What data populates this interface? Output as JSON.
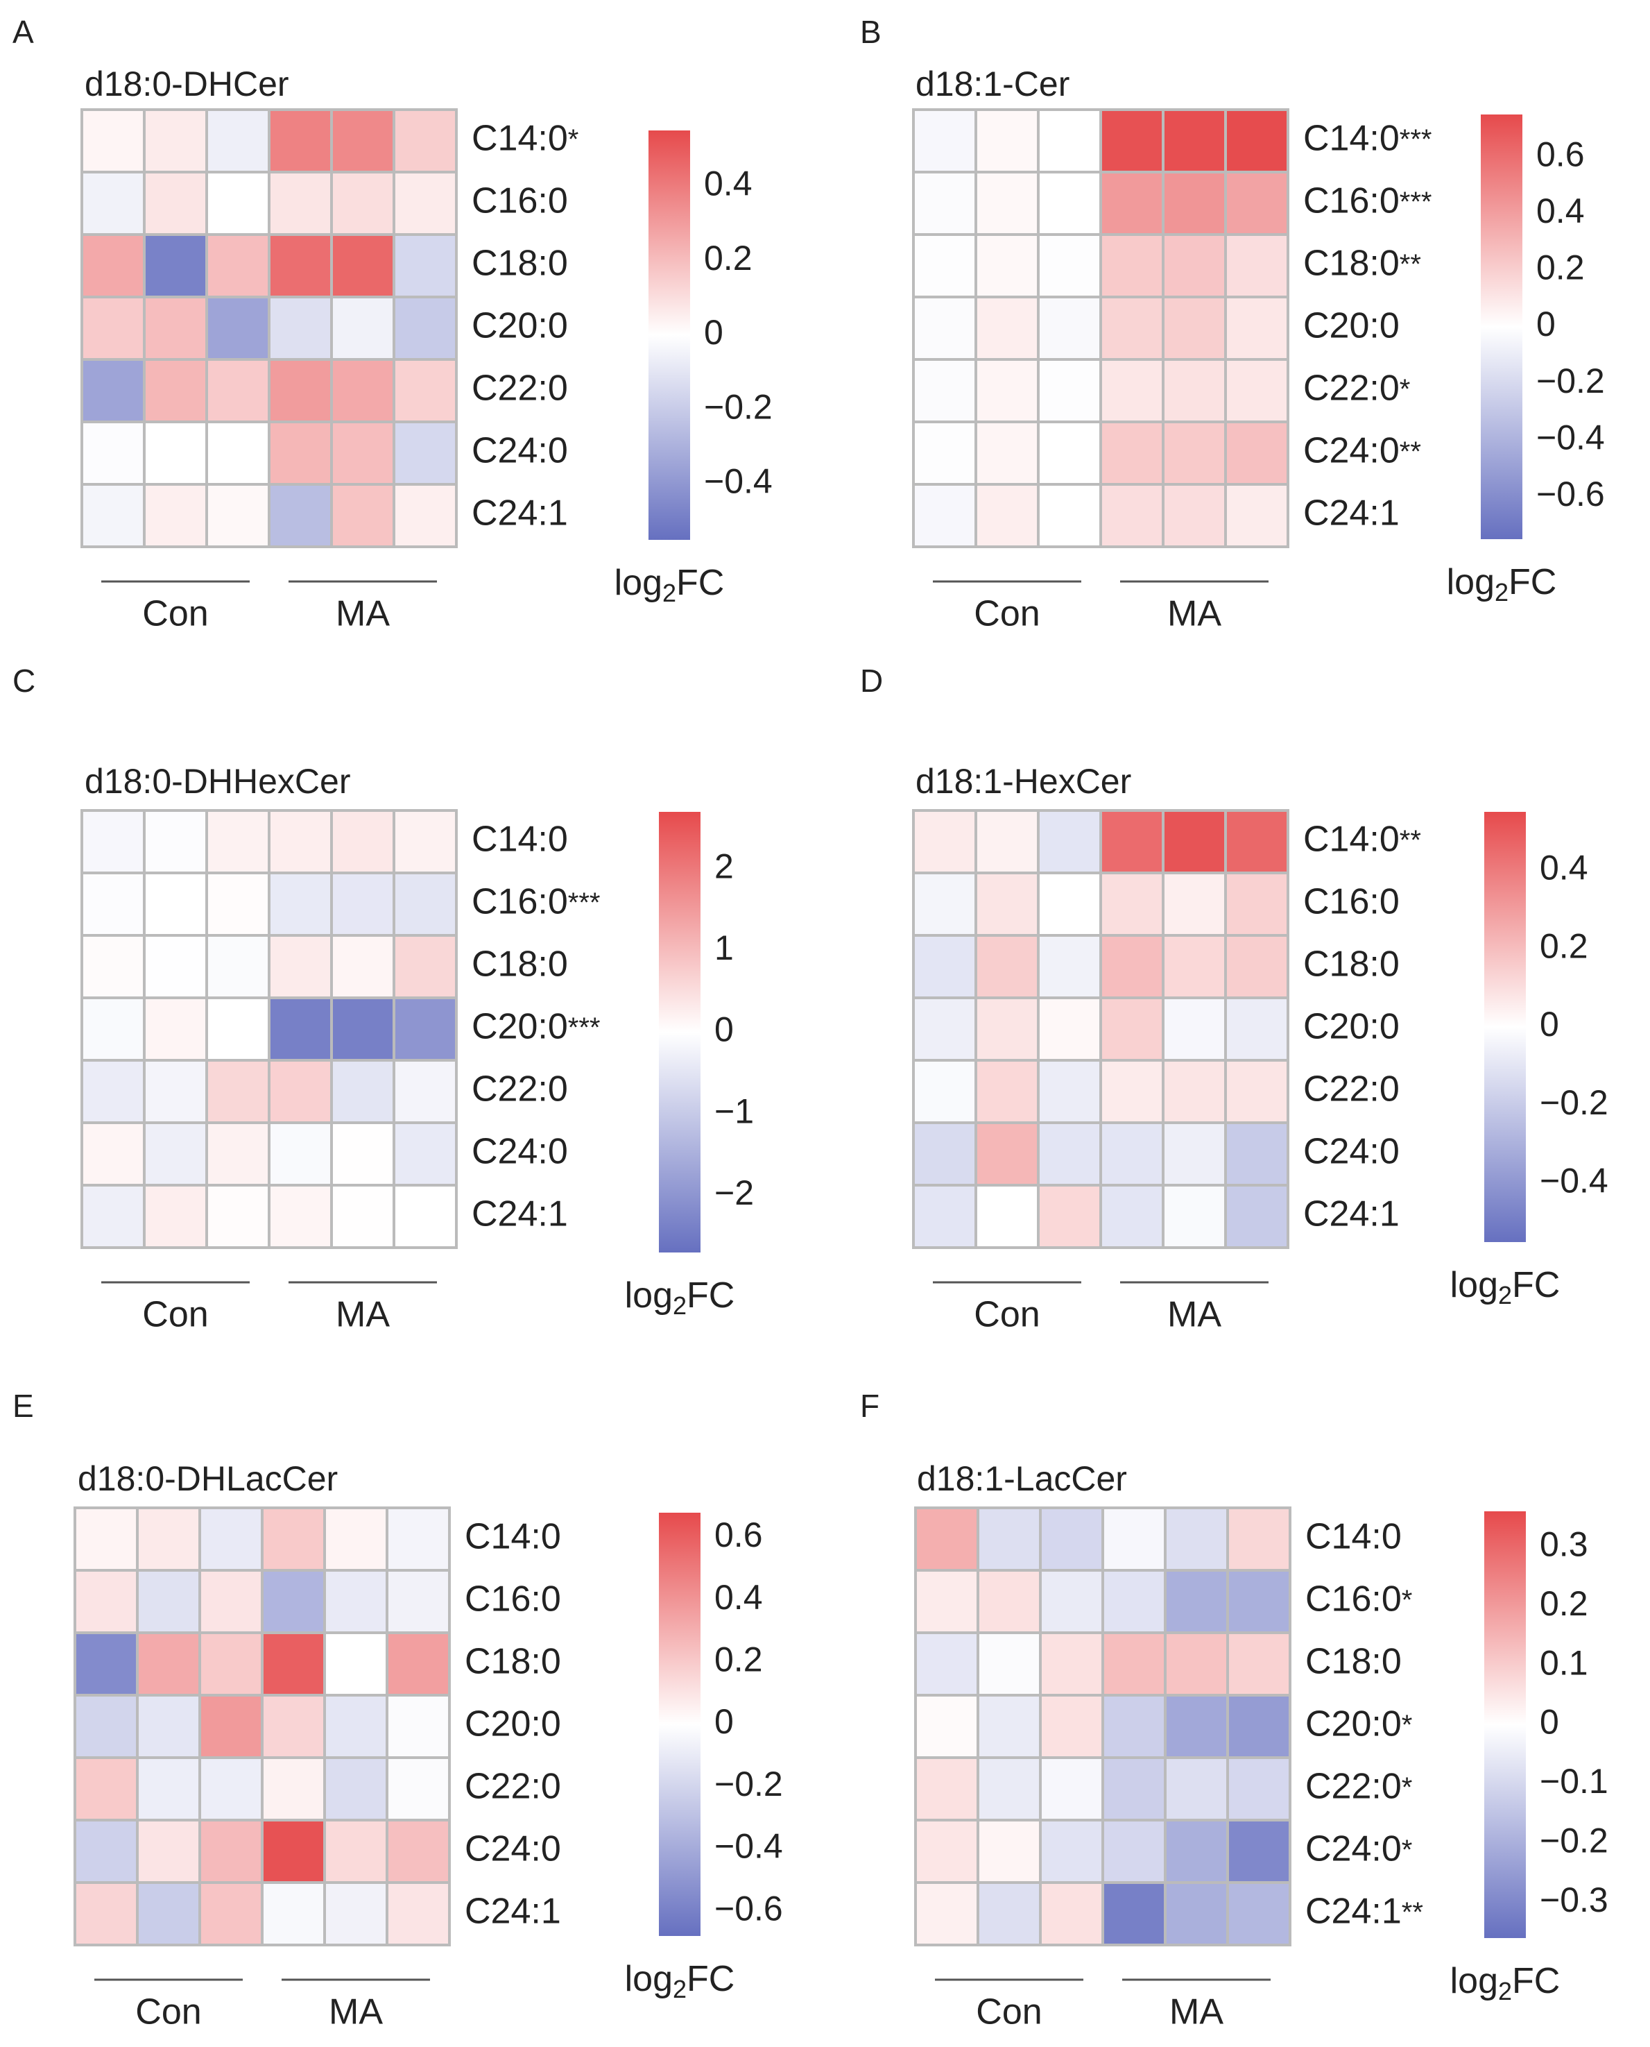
{
  "legend_label": {
    "base": "log",
    "sub": "2",
    "tail": "FC"
  },
  "group_labels": [
    "Con",
    "MA"
  ],
  "colors": {
    "low": "#6670c0",
    "mid": "#ffffff",
    "high": "#e64a4c",
    "grid": "#bbbbbb",
    "text": "#222222"
  },
  "chart_data": [
    {
      "panel": "A",
      "type": "heatmap",
      "title": "d18:0-DHCer",
      "rows": [
        "C14:0",
        "C16:0",
        "C18:0",
        "C20:0",
        "C22:0",
        "C24:0",
        "C24:1"
      ],
      "significance": [
        "*",
        "",
        "",
        "",
        "",
        "",
        ""
      ],
      "columns": [
        "Con",
        "Con",
        "Con",
        "MA",
        "MA",
        "MA"
      ],
      "zlim": [
        -0.55,
        0.55
      ],
      "ticks": [
        {
          "v": 0.4,
          "label": "0.4"
        },
        {
          "v": 0.2,
          "label": "0.2"
        },
        {
          "v": 0,
          "label": "0"
        },
        {
          "v": -0.2,
          "label": "−0.2"
        },
        {
          "v": -0.4,
          "label": "−0.4"
        }
      ],
      "values": [
        [
          0.03,
          0.06,
          -0.06,
          0.38,
          0.36,
          0.15
        ],
        [
          -0.05,
          0.08,
          0.0,
          0.08,
          0.1,
          0.06
        ],
        [
          0.26,
          -0.48,
          0.2,
          0.44,
          0.46,
          -0.15
        ],
        [
          0.16,
          0.2,
          -0.35,
          -0.12,
          -0.05,
          -0.2
        ],
        [
          -0.35,
          0.22,
          0.16,
          0.3,
          0.26,
          0.14
        ],
        [
          -0.01,
          0.0,
          0.0,
          0.22,
          0.2,
          -0.15
        ],
        [
          -0.04,
          0.05,
          0.02,
          -0.25,
          0.18,
          0.05
        ]
      ]
    },
    {
      "panel": "B",
      "type": "heatmap",
      "title": "d18:1-Cer",
      "rows": [
        "C14:0",
        "C16:0",
        "C18:0",
        "C20:0",
        "C22:0",
        "C24:0",
        "C24:1"
      ],
      "significance": [
        "***",
        "***",
        "**",
        "",
        "*",
        "**",
        ""
      ],
      "columns": [
        "Con",
        "Con",
        "Con",
        "MA",
        "MA",
        "MA"
      ],
      "zlim": [
        -0.75,
        0.75
      ],
      "ticks": [
        {
          "v": 0.6,
          "label": "0.6"
        },
        {
          "v": 0.4,
          "label": "0.4"
        },
        {
          "v": 0.2,
          "label": "0.2"
        },
        {
          "v": 0,
          "label": "0"
        },
        {
          "v": -0.2,
          "label": "−0.2"
        },
        {
          "v": -0.4,
          "label": "−0.4"
        },
        {
          "v": -0.6,
          "label": "−0.6"
        }
      ],
      "values": [
        [
          -0.04,
          0.03,
          0.0,
          0.72,
          0.73,
          0.74
        ],
        [
          -0.02,
          0.03,
          0.0,
          0.42,
          0.44,
          0.38
        ],
        [
          -0.01,
          0.03,
          -0.01,
          0.22,
          0.24,
          0.14
        ],
        [
          -0.02,
          0.07,
          -0.03,
          0.18,
          0.2,
          0.1
        ],
        [
          -0.02,
          0.04,
          -0.01,
          0.1,
          0.12,
          0.1
        ],
        [
          -0.01,
          0.04,
          0.0,
          0.22,
          0.22,
          0.26
        ],
        [
          -0.04,
          0.07,
          0.0,
          0.14,
          0.14,
          0.08
        ]
      ]
    },
    {
      "panel": "C",
      "type": "heatmap",
      "title": "d18:0-DHHexCer",
      "rows": [
        "C14:0",
        "C16:0",
        "C18:0",
        "C20:0",
        "C22:0",
        "C24:0",
        "C24:1"
      ],
      "significance": [
        "",
        "***",
        "",
        "***",
        "",
        "",
        ""
      ],
      "columns": [
        "Con",
        "Con",
        "Con",
        "MA",
        "MA",
        "MA"
      ],
      "zlim": [
        -2.7,
        2.7
      ],
      "ticks": [
        {
          "v": 2,
          "label": "2"
        },
        {
          "v": 1,
          "label": "1"
        },
        {
          "v": 0,
          "label": "0"
        },
        {
          "v": -1,
          "label": "−1"
        },
        {
          "v": -2,
          "label": "−2"
        }
      ],
      "values": [
        [
          -0.15,
          -0.05,
          0.2,
          0.25,
          0.35,
          0.2
        ],
        [
          -0.05,
          0.0,
          0.05,
          -0.4,
          -0.45,
          -0.5
        ],
        [
          0.06,
          -0.02,
          -0.08,
          0.3,
          0.15,
          0.6
        ],
        [
          -0.1,
          0.15,
          0.0,
          -2.4,
          -2.4,
          -2.0
        ],
        [
          -0.35,
          -0.2,
          0.6,
          0.7,
          -0.5,
          -0.2
        ],
        [
          0.15,
          -0.3,
          0.2,
          -0.1,
          0.02,
          -0.4
        ],
        [
          -0.3,
          0.25,
          0.05,
          0.15,
          0.02,
          0.0
        ]
      ]
    },
    {
      "panel": "D",
      "type": "heatmap",
      "title": "d18:1-HexCer",
      "rows": [
        "C14:0",
        "C16:0",
        "C18:0",
        "C20:0",
        "C22:0",
        "C24:0",
        "C24:1"
      ],
      "significance": [
        "**",
        "",
        "",
        "",
        "",
        "",
        ""
      ],
      "columns": [
        "Con",
        "Con",
        "Con",
        "MA",
        "MA",
        "MA"
      ],
      "zlim": [
        -0.55,
        0.55
      ],
      "ticks": [
        {
          "v": 0.4,
          "label": "0.4"
        },
        {
          "v": 0.2,
          "label": "0.2"
        },
        {
          "v": 0,
          "label": "0"
        },
        {
          "v": -0.2,
          "label": "−0.2"
        },
        {
          "v": -0.4,
          "label": "−0.4"
        }
      ],
      "values": [
        [
          0.06,
          0.04,
          -0.1,
          0.45,
          0.52,
          0.46
        ],
        [
          -0.04,
          0.08,
          0.0,
          0.1,
          0.05,
          0.14
        ],
        [
          -0.1,
          0.15,
          -0.05,
          0.2,
          0.12,
          0.15
        ],
        [
          -0.06,
          0.08,
          0.02,
          0.14,
          -0.03,
          -0.07
        ],
        [
          -0.02,
          0.12,
          -0.07,
          0.06,
          0.08,
          0.08
        ],
        [
          -0.14,
          0.22,
          -0.1,
          -0.1,
          -0.06,
          -0.2
        ],
        [
          -0.1,
          0.0,
          0.12,
          -0.1,
          -0.02,
          -0.2
        ]
      ]
    },
    {
      "panel": "E",
      "type": "heatmap",
      "title": "d18:0-DHLacCer",
      "rows": [
        "C14:0",
        "C16:0",
        "C18:0",
        "C20:0",
        "C22:0",
        "C24:0",
        "C24:1"
      ],
      "significance": [
        "",
        "",
        "",
        "",
        "",
        "",
        ""
      ],
      "columns": [
        "Con",
        "Con",
        "Con",
        "MA",
        "MA",
        "MA"
      ],
      "zlim": [
        -0.68,
        0.68
      ],
      "ticks": [
        {
          "v": 0.6,
          "label": "0.6"
        },
        {
          "v": 0.4,
          "label": "0.4"
        },
        {
          "v": 0.2,
          "label": "0.2"
        },
        {
          "v": 0,
          "label": "0"
        },
        {
          "v": -0.2,
          "label": "−0.2"
        },
        {
          "v": -0.4,
          "label": "−0.4"
        },
        {
          "v": -0.6,
          "label": "−0.6"
        }
      ],
      "values": [
        [
          0.04,
          0.08,
          -0.1,
          0.2,
          0.04,
          -0.05
        ],
        [
          0.1,
          -0.14,
          0.1,
          -0.35,
          -0.1,
          -0.06
        ],
        [
          -0.55,
          0.32,
          0.2,
          0.6,
          0.0,
          0.36
        ],
        [
          -0.2,
          -0.12,
          0.38,
          0.16,
          -0.12,
          -0.02
        ],
        [
          0.2,
          -0.08,
          -0.08,
          0.05,
          -0.16,
          -0.02
        ],
        [
          -0.22,
          0.1,
          0.26,
          0.65,
          0.14,
          0.24
        ],
        [
          0.16,
          -0.24,
          0.22,
          -0.03,
          -0.06,
          0.1
        ]
      ]
    },
    {
      "panel": "F",
      "type": "heatmap",
      "title": "d18:1-LacCer",
      "rows": [
        "C14:0",
        "C16:0",
        "C18:0",
        "C20:0",
        "C22:0",
        "C24:0",
        "C24:1"
      ],
      "significance": [
        "",
        "*",
        "",
        "*",
        "*",
        "*",
        "**"
      ],
      "columns": [
        "Con",
        "Con",
        "Con",
        "MA",
        "MA",
        "MA"
      ],
      "zlim": [
        -0.36,
        0.36
      ],
      "ticks": [
        {
          "v": 0.3,
          "label": "0.3"
        },
        {
          "v": 0.2,
          "label": "0.2"
        },
        {
          "v": 0.1,
          "label": "0.1"
        },
        {
          "v": 0,
          "label": "0"
        },
        {
          "v": -0.1,
          "label": "−0.1"
        },
        {
          "v": -0.2,
          "label": "−0.2"
        },
        {
          "v": -0.3,
          "label": "−0.3"
        }
      ],
      "values": [
        [
          0.16,
          -0.08,
          -0.1,
          -0.02,
          -0.08,
          0.08
        ],
        [
          0.04,
          0.06,
          -0.05,
          -0.07,
          -0.2,
          -0.2
        ],
        [
          -0.06,
          -0.01,
          0.06,
          0.13,
          0.12,
          0.09
        ],
        [
          0.01,
          -0.05,
          0.06,
          -0.12,
          -0.22,
          -0.25
        ],
        [
          0.06,
          -0.05,
          -0.02,
          -0.12,
          -0.08,
          -0.1
        ],
        [
          0.05,
          0.02,
          -0.07,
          -0.1,
          -0.2,
          -0.3
        ],
        [
          0.03,
          -0.08,
          0.06,
          -0.32,
          -0.2,
          -0.18
        ]
      ]
    }
  ]
}
